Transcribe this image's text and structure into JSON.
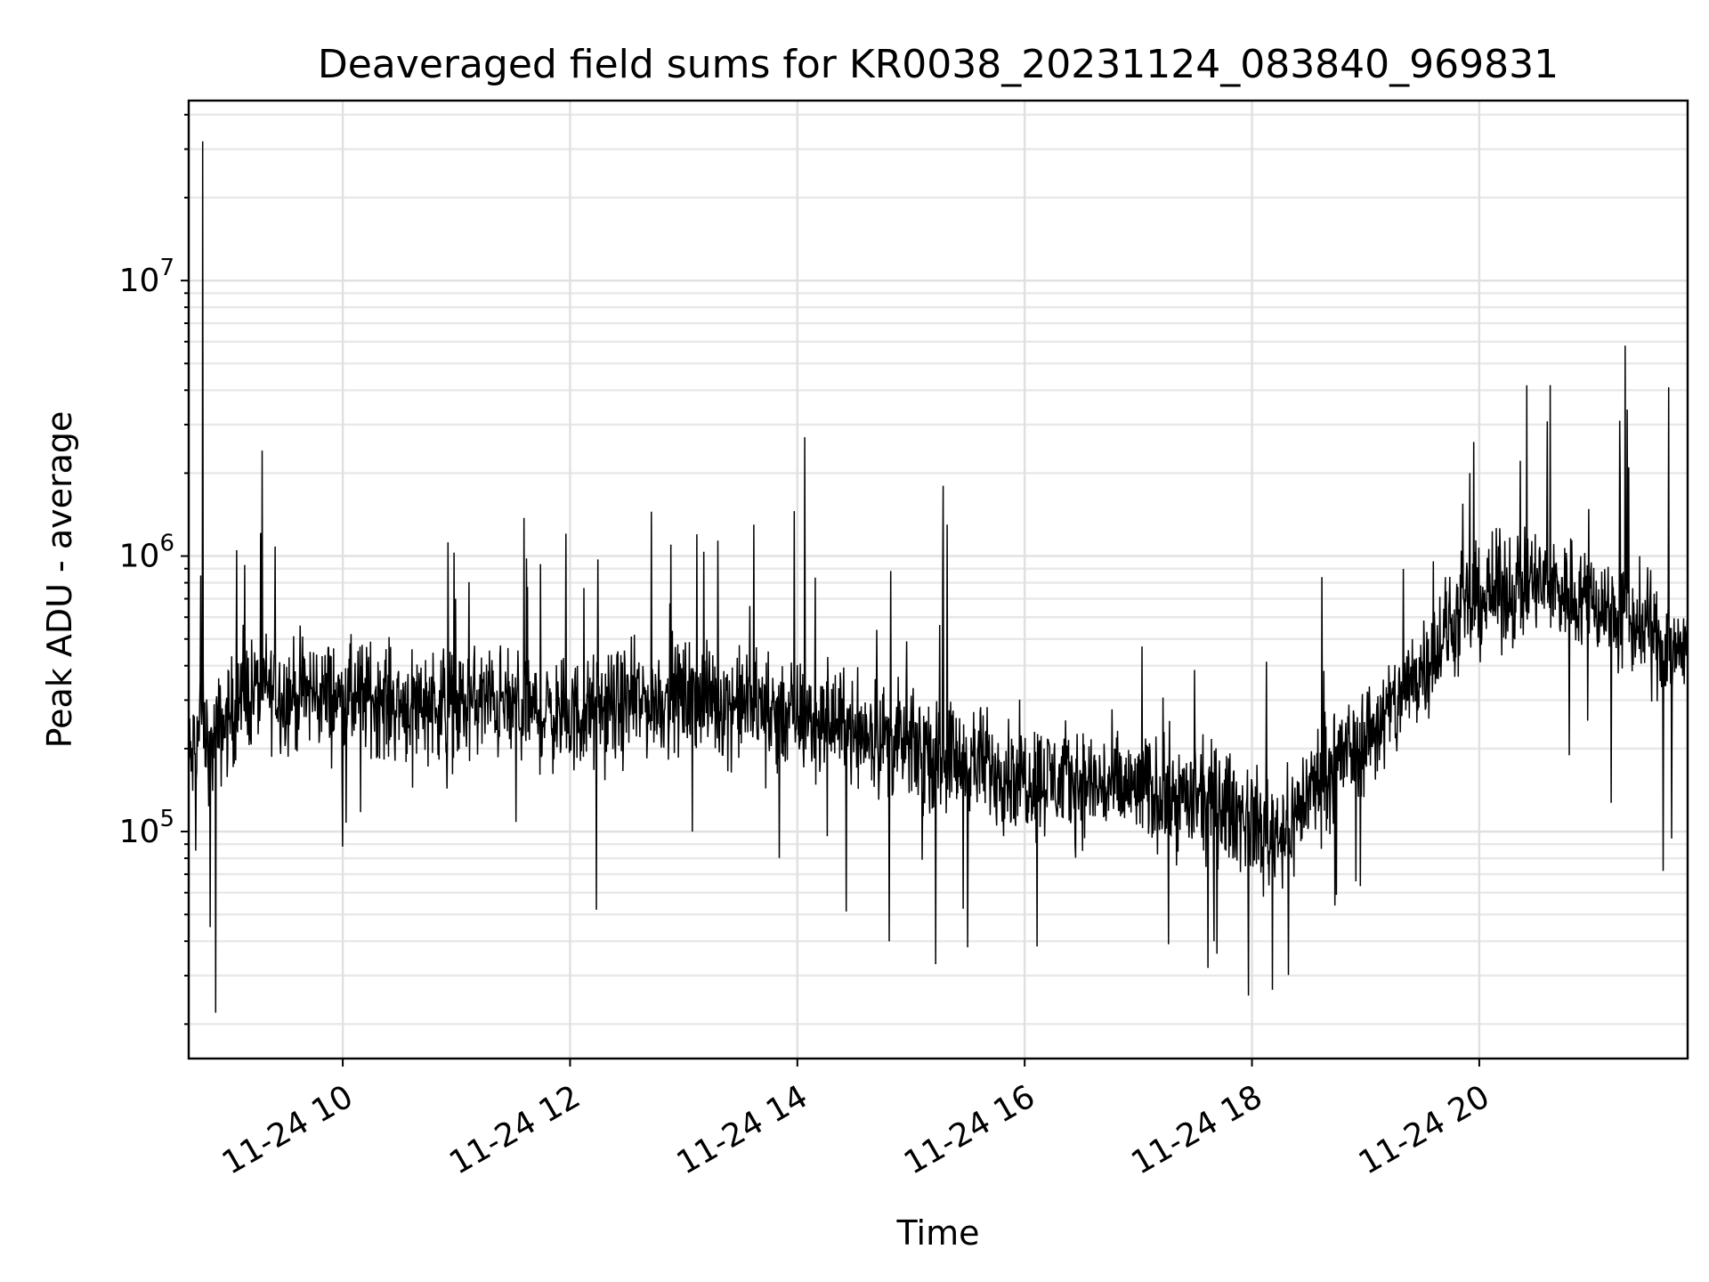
{
  "chart_data": {
    "type": "line",
    "title": "Deaveraged field sums for KR0038_20231124_083840_969831",
    "xlabel": "Time",
    "ylabel": "Peak ADU - average",
    "x_scale": "time",
    "y_scale": "log",
    "xlim": [
      "2023-11-24T08:38:40",
      "2023-11-24T21:50:00"
    ],
    "ylim": [
      15000,
      45000000
    ],
    "x_ticks": [
      {
        "value": "2023-11-24T10:00:00",
        "label": "11-24 10"
      },
      {
        "value": "2023-11-24T12:00:00",
        "label": "11-24 12"
      },
      {
        "value": "2023-11-24T14:00:00",
        "label": "11-24 14"
      },
      {
        "value": "2023-11-24T16:00:00",
        "label": "11-24 16"
      },
      {
        "value": "2023-11-24T18:00:00",
        "label": "11-24 18"
      },
      {
        "value": "2023-11-24T20:00:00",
        "label": "11-24 20"
      }
    ],
    "y_ticks": [
      {
        "value": 100000,
        "base": "10",
        "exp": "5"
      },
      {
        "value": 1000000,
        "base": "10",
        "exp": "6"
      },
      {
        "value": 10000000,
        "base": "10",
        "exp": "7"
      }
    ],
    "grid": true,
    "line_color": "#000000",
    "series": [
      {
        "x": [
          "2023-11-24T08:40",
          "2023-11-24T08:45",
          "2023-11-24T08:50",
          "2023-11-24T08:55",
          "2023-11-24T09:00",
          "2023-11-24T09:10",
          "2023-11-24T09:20",
          "2023-11-24T09:30",
          "2023-11-24T09:45",
          "2023-11-24T10:00",
          "2023-11-24T10:15",
          "2023-11-24T10:30",
          "2023-11-24T10:45",
          "2023-11-24T11:00",
          "2023-11-24T11:15",
          "2023-11-24T11:30",
          "2023-11-24T11:45",
          "2023-11-24T12:00",
          "2023-11-24T12:15",
          "2023-11-24T12:30",
          "2023-11-24T12:45",
          "2023-11-24T13:00",
          "2023-11-24T13:15",
          "2023-11-24T13:30",
          "2023-11-24T13:45",
          "2023-11-24T14:00",
          "2023-11-24T14:15",
          "2023-11-24T14:30",
          "2023-11-24T14:45",
          "2023-11-24T15:00",
          "2023-11-24T15:15",
          "2023-11-24T15:30",
          "2023-11-24T15:45",
          "2023-11-24T16:00",
          "2023-11-24T16:15",
          "2023-11-24T16:30",
          "2023-11-24T16:45",
          "2023-11-24T17:00",
          "2023-11-24T17:15",
          "2023-11-24T17:30",
          "2023-11-24T17:45",
          "2023-11-24T18:00",
          "2023-11-24T18:10",
          "2023-11-24T18:20",
          "2023-11-24T18:30",
          "2023-11-24T18:45",
          "2023-11-24T19:00",
          "2023-11-24T19:15",
          "2023-11-24T19:30",
          "2023-11-24T19:45",
          "2023-11-24T20:00",
          "2023-11-24T20:15",
          "2023-11-24T20:30",
          "2023-11-24T20:45",
          "2023-11-24T21:00",
          "2023-11-24T21:15",
          "2023-11-24T21:25",
          "2023-11-24T21:35",
          "2023-11-24T21:45",
          "2023-11-24T21:50"
        ],
        "y": [
          180000,
          250000,
          200000,
          230000,
          260000,
          320000,
          330000,
          310000,
          320000,
          300000,
          310000,
          290000,
          300000,
          280000,
          300000,
          280000,
          270000,
          260000,
          270000,
          290000,
          300000,
          310000,
          300000,
          290000,
          280000,
          260000,
          250000,
          240000,
          220000,
          200000,
          190000,
          180000,
          170000,
          160000,
          155000,
          150000,
          145000,
          140000,
          135000,
          130000,
          125000,
          110000,
          100000,
          105000,
          140000,
          180000,
          220000,
          280000,
          400000,
          550000,
          700000,
          750000,
          800000,
          750000,
          700000,
          600000,
          550000,
          500000,
          450000,
          480000
        ]
      }
    ],
    "spikes": [
      {
        "x": "2023-11-24T08:46",
        "y": 32000000
      },
      {
        "x": "2023-11-24T08:45",
        "y": 850000
      },
      {
        "x": "2023-11-24T09:04",
        "y": 1050000
      },
      {
        "x": "2023-11-24T11:37",
        "y": 980000
      },
      {
        "x": "2023-11-24T12:43",
        "y": 1450000
      },
      {
        "x": "2023-11-24T13:07",
        "y": 1200000
      },
      {
        "x": "2023-11-24T14:04",
        "y": 2700000
      },
      {
        "x": "2023-11-24T15:17",
        "y": 1800000
      },
      {
        "x": "2023-11-24T15:19",
        "y": 1300000
      },
      {
        "x": "2023-11-24T17:02",
        "y": 470000
      },
      {
        "x": "2023-11-24T19:55",
        "y": 2000000
      },
      {
        "x": "2023-11-24T21:14",
        "y": 3100000
      },
      {
        "x": "2023-11-24T21:17",
        "y": 5800000
      },
      {
        "x": "2023-11-24T21:18",
        "y": 3400000
      },
      {
        "x": "2023-11-24T21:19",
        "y": 2100000
      },
      {
        "x": "2023-11-24T21:40",
        "y": 4100000
      }
    ],
    "dips": [
      {
        "x": "2023-11-24T08:53",
        "y": 22000
      },
      {
        "x": "2023-11-24T08:50",
        "y": 45000
      },
      {
        "x": "2023-11-24T12:14",
        "y": 52000
      },
      {
        "x": "2023-11-24T15:13",
        "y": 33000
      },
      {
        "x": "2023-11-24T15:30",
        "y": 38000
      },
      {
        "x": "2023-11-24T17:40",
        "y": 40000
      },
      {
        "x": "2023-11-24T18:06",
        "y": 58000
      },
      {
        "x": "2023-11-24T21:37",
        "y": 72000
      }
    ]
  }
}
